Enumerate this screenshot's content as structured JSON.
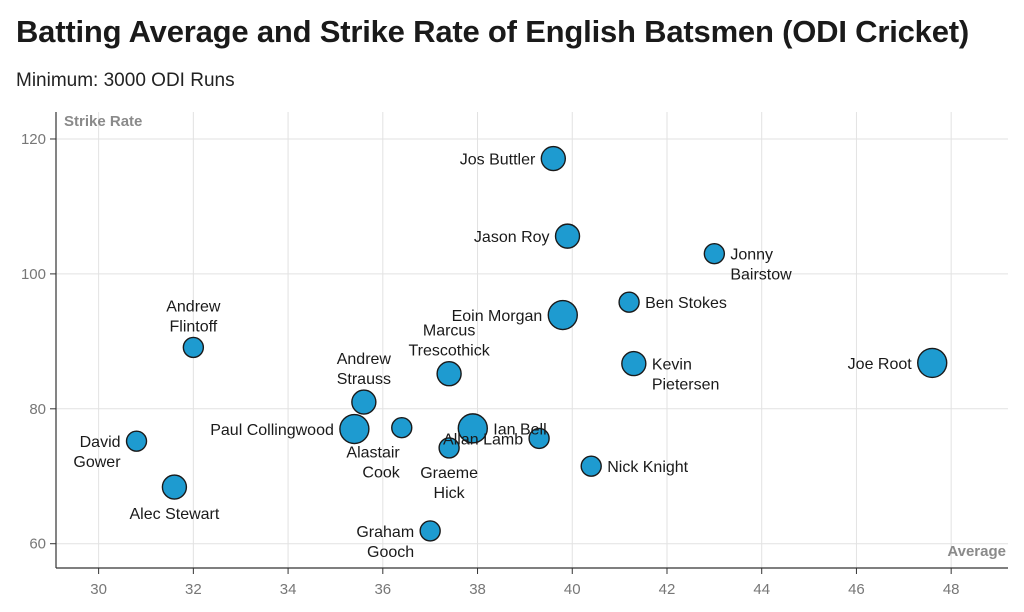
{
  "title": "Batting Average and Strike Rate of English Batsmen (ODI Cricket)",
  "subtitle": "Minimum: 3000 ODI Runs",
  "colors": {
    "bubble_fill": "#1e9bd0",
    "bubble_stroke": "#1a1a1a",
    "grid": "#e2e2e2",
    "axis": "#333333"
  },
  "chart_data": {
    "type": "scatter",
    "xlabel": "Average",
    "ylabel": "Strike Rate",
    "xlim": [
      29.1,
      49.2
    ],
    "ylim": [
      56.4,
      124.0
    ],
    "x_ticks": [
      30,
      32,
      34,
      36,
      38,
      40,
      42,
      44,
      46,
      48
    ],
    "y_ticks": [
      60,
      80,
      100,
      120
    ],
    "grid": true,
    "points": [
      {
        "label": [
          "Jos Buttler"
        ],
        "x": 39.6,
        "y": 117.1,
        "size": "medium",
        "label_pos": "left"
      },
      {
        "label": [
          "Jason Roy"
        ],
        "x": 39.9,
        "y": 105.6,
        "size": "medium",
        "label_pos": "left"
      },
      {
        "label": [
          "Jonny",
          "Bairstow"
        ],
        "x": 43.0,
        "y": 103.0,
        "size": "small",
        "label_pos": "right-lower"
      },
      {
        "label": [
          "Ben Stokes"
        ],
        "x": 41.2,
        "y": 95.8,
        "size": "small",
        "label_pos": "right"
      },
      {
        "label": [
          "Eoin Morgan"
        ],
        "x": 39.8,
        "y": 93.9,
        "size": "large",
        "label_pos": "left"
      },
      {
        "label": [
          "Andrew",
          "Flintoff"
        ],
        "x": 32.0,
        "y": 89.1,
        "size": "small",
        "label_pos": "above"
      },
      {
        "label": [
          "Marcus",
          "Trescothick"
        ],
        "x": 37.4,
        "y": 85.2,
        "size": "medium",
        "label_pos": "above"
      },
      {
        "label": [
          "Kevin",
          "Pietersen"
        ],
        "x": 41.3,
        "y": 86.7,
        "size": "medium",
        "label_pos": "right-lower"
      },
      {
        "label": [
          "Joe Root"
        ],
        "x": 47.6,
        "y": 86.8,
        "size": "large",
        "label_pos": "left"
      },
      {
        "label": [
          "Andrew",
          "Strauss"
        ],
        "x": 35.6,
        "y": 81.0,
        "size": "medium",
        "label_pos": "above"
      },
      {
        "label": [
          "Paul Collingwood"
        ],
        "x": 35.4,
        "y": 77.0,
        "size": "large",
        "label_pos": "left"
      },
      {
        "label": [
          "Alastair",
          "Cook"
        ],
        "x": 36.4,
        "y": 77.2,
        "size": "small",
        "label_pos": "below-left"
      },
      {
        "label": [
          "Ian Bell"
        ],
        "x": 37.9,
        "y": 77.1,
        "size": "large",
        "label_pos": "right"
      },
      {
        "label": [
          "Allan Lamb"
        ],
        "x": 39.3,
        "y": 75.6,
        "size": "small",
        "label_pos": "left"
      },
      {
        "label": [
          "Graeme",
          "Hick"
        ],
        "x": 37.4,
        "y": 74.2,
        "size": "small",
        "label_pos": "below"
      },
      {
        "label": [
          "David",
          "Gower"
        ],
        "x": 30.8,
        "y": 75.2,
        "size": "small",
        "label_pos": "left-lower"
      },
      {
        "label": [
          "Nick Knight"
        ],
        "x": 40.4,
        "y": 71.5,
        "size": "small",
        "label_pos": "right"
      },
      {
        "label": [
          "Alec Stewart"
        ],
        "x": 31.6,
        "y": 68.4,
        "size": "medium",
        "label_pos": "below"
      },
      {
        "label": [
          "Graham",
          "Gooch"
        ],
        "x": 37.0,
        "y": 61.9,
        "size": "small",
        "label_pos": "left-lower"
      }
    ]
  }
}
